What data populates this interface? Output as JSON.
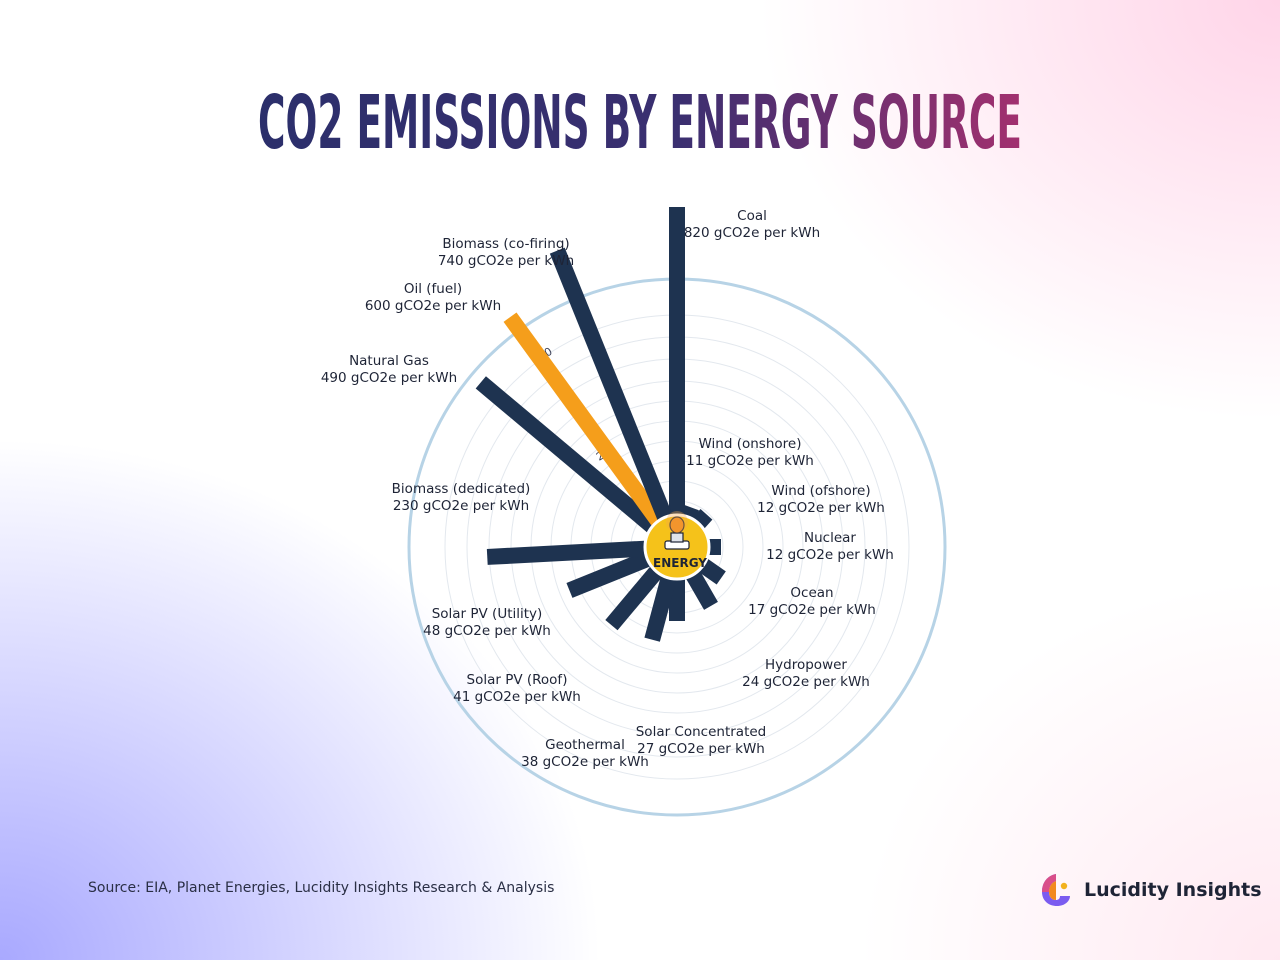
{
  "title": "CO2 EMISSIONS BY ENERGY SOURCE",
  "colors": {
    "bar": "#1e3350",
    "highlight": "#f59e1b",
    "ring": "#b7d3e6",
    "title_start": "#2b2f6b",
    "title_end": "#a2306f",
    "center": "#f5c21a"
  },
  "chart_data": {
    "type": "bar",
    "layout": "radial",
    "center_label": "ENERGY",
    "unit": "gCO2e per kWh",
    "radial_ticks": [
      "20",
      "40",
      "60"
    ],
    "highlight": "Oil (fuel)",
    "categories": [
      "Coal",
      "Wind (onshore)",
      "Wind (ofshore)",
      "Nuclear",
      "Ocean",
      "Hydropower",
      "Solar Concentrated",
      "Geothermal",
      "Solar PV (Roof)",
      "Solar PV (Utility)",
      "Biomass (dedicated)",
      "Natural Gas",
      "Oil (fuel)",
      "Biomass (co-firing)"
    ],
    "values": [
      820,
      11,
      12,
      12,
      17,
      24,
      27,
      38,
      41,
      48,
      230,
      490,
      600,
      740
    ],
    "value_labels": [
      "820 gCO2e per kWh",
      "11 gCO2e per kWh",
      "12 gCO2e per kWh",
      "12 gCO2e per kWh",
      "17 gCO2e per kWh",
      "24 gCO2e per kWh",
      "27 gCO2e per kWh",
      "38 gCO2e per kWh",
      "41 gCO2e per kWh",
      "48 gCO2e per kWh",
      "230 gCO2e per kWh",
      "490 gCO2e per kWh",
      "600 gCO2e per kWh",
      "740 gCO2e per kWh"
    ]
  },
  "footer": {
    "source": "Source: EIA, Planet Energies, Lucidity Insights Research & Analysis",
    "brand": "Lucidity Insights"
  }
}
